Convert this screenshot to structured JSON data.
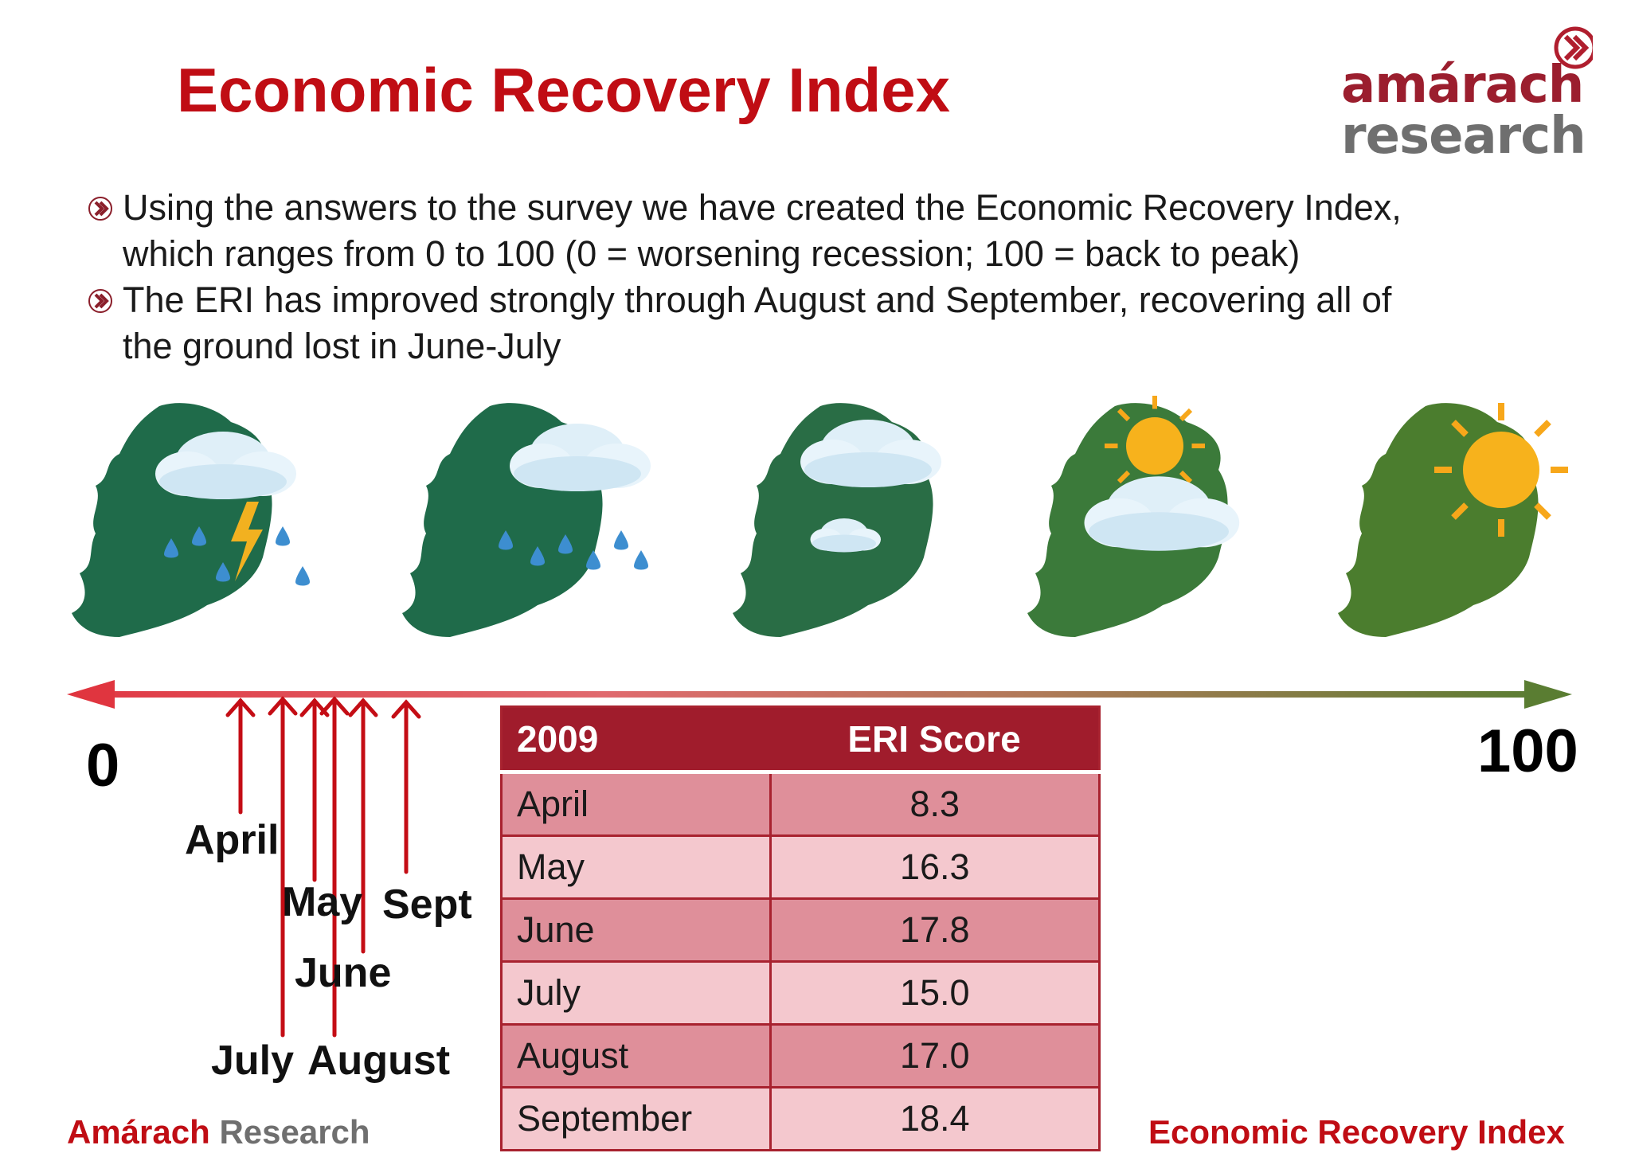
{
  "header": {
    "title": "Economic Recovery Index",
    "logo_top": "amárach",
    "logo_bottom": "research"
  },
  "bullets": [
    [
      "Using the answers to the survey we have created the Economic Recovery Index,",
      "which ranges from 0 to 100 (0 = worsening recession; 100 = back to peak)"
    ],
    [
      "The ERI has improved strongly through August and September, recovering all of",
      "the ground lost in June-July"
    ]
  ],
  "weather_icons": [
    "storm-icon",
    "rain-icon",
    "cloud-icon",
    "sun-cloud-icon",
    "sun-icon"
  ],
  "scale": {
    "min_label": "0",
    "max_label": "100"
  },
  "month_labels": {
    "april": "April",
    "may": "May",
    "sept": "Sept",
    "june": "June",
    "july": "July",
    "august": "August"
  },
  "table": {
    "headers": [
      "2009",
      "ERI Score"
    ],
    "rows": [
      [
        "April",
        "8.3"
      ],
      [
        "May",
        "16.3"
      ],
      [
        "June",
        "17.8"
      ],
      [
        "July",
        "15.0"
      ],
      [
        "August",
        "17.0"
      ],
      [
        "September",
        "18.4"
      ]
    ]
  },
  "footer": {
    "left_red": "Amárach",
    "left_grey": "Research",
    "right": "Economic Recovery Index"
  },
  "colors": {
    "accent": "#c00d14",
    "table_header": "#a01c2c",
    "map_green": "#1f6b4a"
  }
}
